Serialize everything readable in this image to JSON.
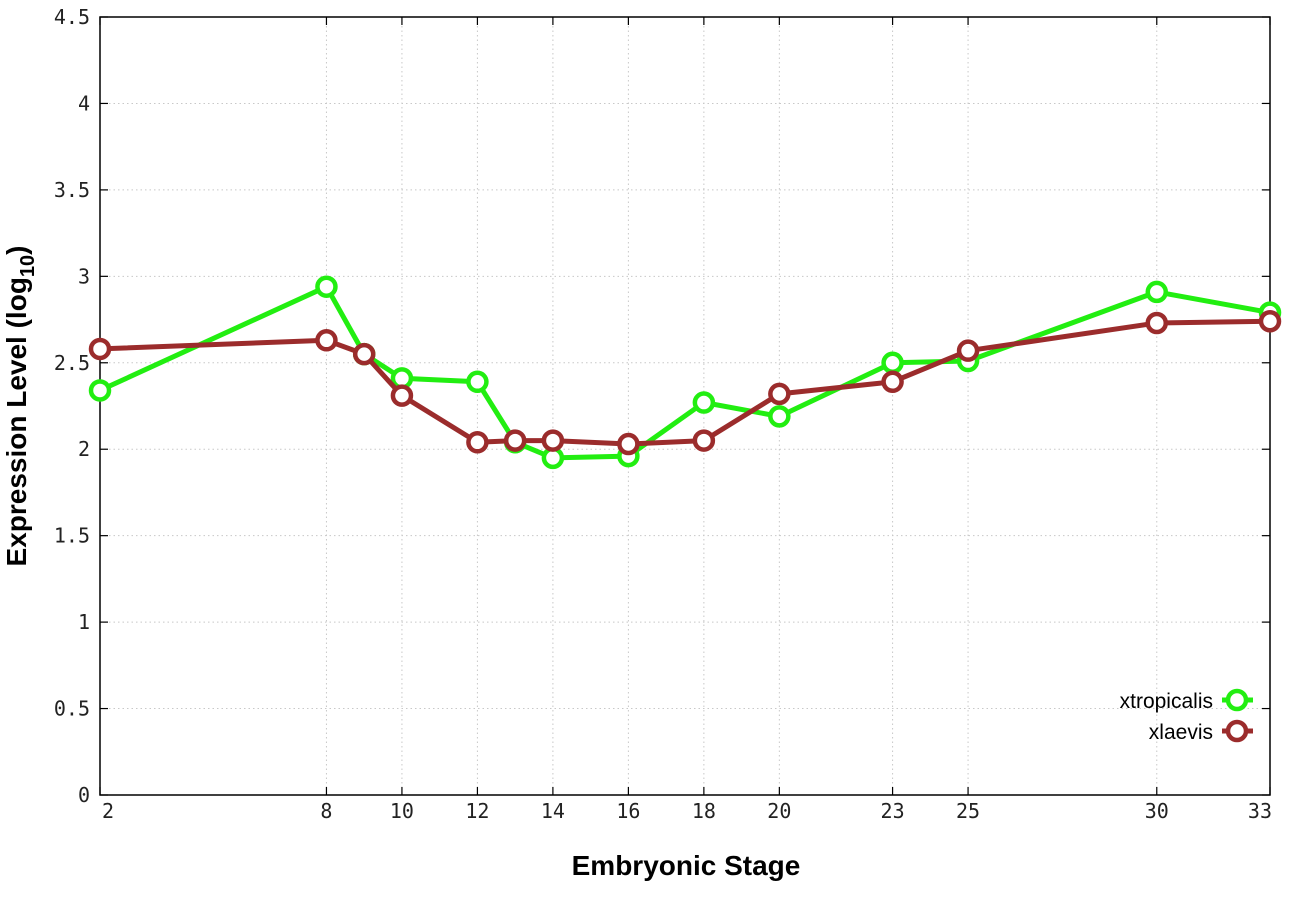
{
  "chart_data": {
    "type": "line",
    "xlabel": "Embryonic Stage",
    "ylabel_main": "Expression Level (log",
    "ylabel_sub": "10",
    "ylabel_close": ")",
    "x": [
      2,
      8,
      9,
      10,
      12,
      13,
      14,
      16,
      18,
      20,
      23,
      25,
      30,
      33
    ],
    "x_tick_labels": [
      "2",
      "8",
      "10",
      "12",
      "14",
      "16",
      "18",
      "20",
      "23",
      "25",
      "30",
      "33"
    ],
    "x_tick_values": [
      2,
      8,
      10,
      12,
      14,
      16,
      18,
      20,
      23,
      25,
      30,
      33
    ],
    "xlim": [
      2,
      33
    ],
    "ylim": [
      0,
      4.5
    ],
    "y_ticks": [
      0,
      0.5,
      1,
      1.5,
      2,
      2.5,
      3,
      3.5,
      4,
      4.5
    ],
    "y_tick_labels": [
      "0",
      "0.5",
      "1",
      "1.5",
      "2",
      "2.5",
      "3",
      "3.5",
      "4",
      "4.5"
    ],
    "grid": true,
    "legend_position": "bottom-right",
    "series": [
      {
        "name": "xtropicalis",
        "color": "#22ee11",
        "values": [
          2.34,
          2.94,
          2.55,
          2.41,
          2.39,
          2.04,
          1.95,
          1.96,
          2.27,
          2.19,
          2.5,
          2.51,
          2.91,
          2.79
        ]
      },
      {
        "name": "xlaevis",
        "color": "#9b2c2c",
        "values": [
          2.58,
          2.63,
          2.55,
          2.31,
          2.04,
          2.05,
          2.05,
          2.03,
          2.05,
          2.32,
          2.39,
          2.57,
          2.73,
          2.74
        ]
      }
    ]
  }
}
